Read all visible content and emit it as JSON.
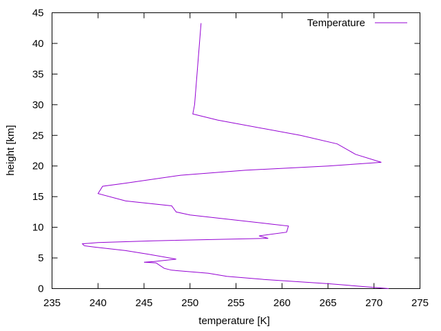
{
  "chart_data": {
    "type": "line",
    "xlabel": "temperature [K]",
    "ylabel": "height [km]",
    "xlim": [
      235,
      275
    ],
    "ylim": [
      0,
      45
    ],
    "xticks": [
      235,
      240,
      245,
      250,
      255,
      260,
      265,
      270,
      275
    ],
    "yticks": [
      0,
      5,
      10,
      15,
      20,
      25,
      30,
      35,
      40,
      45
    ],
    "grid": false,
    "legend_position": "top-right",
    "series": [
      {
        "name": "Temperature",
        "color": "#9400d3",
        "points": [
          [
            271.6,
            0.0
          ],
          [
            265.0,
            0.8
          ],
          [
            258.0,
            1.5
          ],
          [
            254.0,
            2.0
          ],
          [
            252.0,
            2.5
          ],
          [
            248.0,
            3.0
          ],
          [
            247.2,
            3.3
          ],
          [
            246.3,
            4.2
          ],
          [
            245.0,
            4.3
          ],
          [
            246.0,
            4.4
          ],
          [
            248.5,
            4.8
          ],
          [
            245.5,
            5.6
          ],
          [
            243.0,
            6.2
          ],
          [
            239.5,
            6.8
          ],
          [
            238.5,
            7.0
          ],
          [
            238.3,
            7.3
          ],
          [
            240.0,
            7.5
          ],
          [
            246.0,
            7.8
          ],
          [
            258.5,
            8.2
          ],
          [
            257.5,
            8.6
          ],
          [
            260.5,
            9.2
          ],
          [
            260.7,
            10.2
          ],
          [
            259.0,
            10.5
          ],
          [
            250.0,
            12.0
          ],
          [
            248.5,
            12.5
          ],
          [
            248.0,
            13.5
          ],
          [
            243.0,
            14.3
          ],
          [
            240.0,
            15.5
          ],
          [
            240.5,
            16.7
          ],
          [
            243.0,
            17.2
          ],
          [
            249.0,
            18.5
          ],
          [
            256.0,
            19.3
          ],
          [
            265.0,
            20.0
          ],
          [
            270.8,
            20.6
          ],
          [
            268.0,
            21.9
          ],
          [
            266.0,
            23.6
          ],
          [
            262.0,
            25.0
          ],
          [
            253.0,
            27.5
          ],
          [
            250.3,
            28.5
          ],
          [
            250.5,
            30.0
          ],
          [
            251.2,
            43.3
          ]
        ]
      }
    ]
  }
}
